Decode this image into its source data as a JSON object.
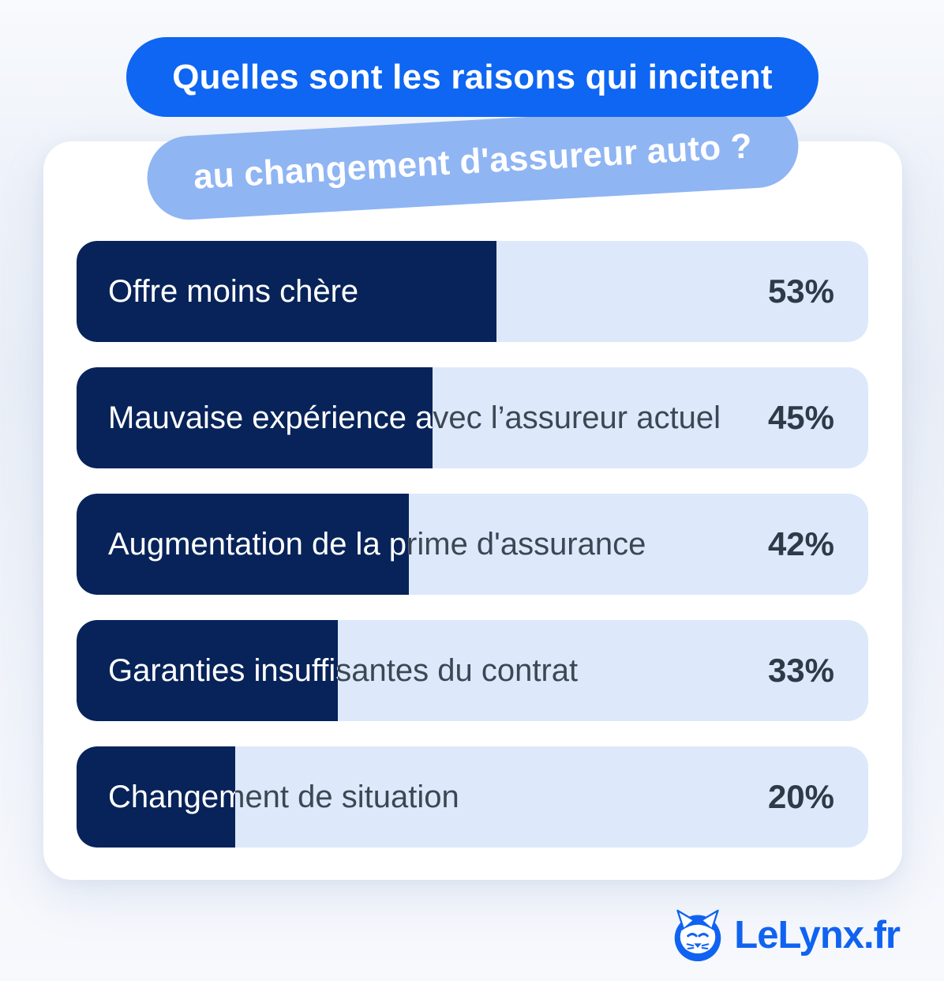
{
  "header": {
    "line1": "Quelles sont les raisons qui incitent",
    "line2": "au changement d'assureur auto ?"
  },
  "chart_data": {
    "type": "bar",
    "orientation": "horizontal",
    "title": "Quelles sont les raisons qui incitent au changement d'assureur auto ?",
    "unit": "percent",
    "xlim": [
      0,
      100
    ],
    "categories": [
      "Offre moins chère",
      "Mauvaise expérience avec l’assureur actuel",
      "Augmentation de la prime d'assurance",
      "Garanties insuffisantes du contrat",
      "Changement de situation"
    ],
    "values": [
      53,
      45,
      42,
      33,
      20
    ],
    "rows": [
      {
        "label": "Offre moins chère",
        "value": 53,
        "pct": "53%"
      },
      {
        "label": "Mauvaise expérience avec l’assureur actuel",
        "value": 45,
        "pct": "45%"
      },
      {
        "label": "Augmentation de la prime d'assurance",
        "value": 42,
        "pct": "42%"
      },
      {
        "label": "Garanties insuffisantes du contrat",
        "value": 33,
        "pct": "33%"
      },
      {
        "label": "Changement de situation",
        "value": 20,
        "pct": "20%"
      }
    ],
    "legend": null,
    "grid": false
  },
  "footer": {
    "logo_text": "LeLynx.fr"
  },
  "colors": {
    "accent_blue": "#0e66f2",
    "light_blue_pill": "#8fb5f3",
    "bar_fill_navy": "#07235a",
    "bar_track": "#dde9fa",
    "percent_text": "#2e3a47",
    "label_text": "#3d4653",
    "logo_blue": "#1063f0",
    "card_bg": "#ffffff"
  }
}
